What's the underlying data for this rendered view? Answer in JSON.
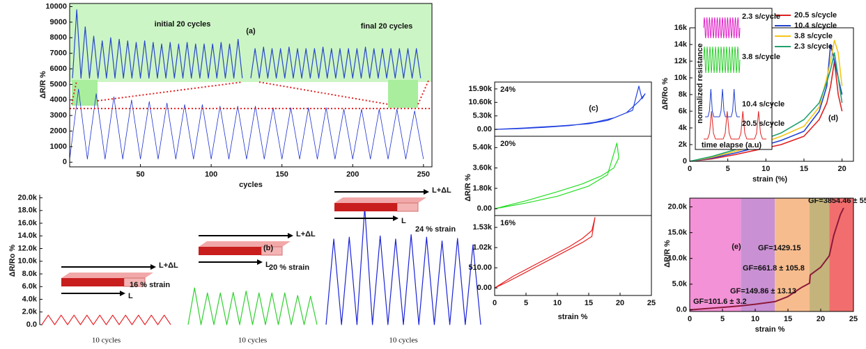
{
  "chart_data": [
    {
      "type": "line",
      "title": "(a)",
      "ylabel": "ΔR/R %",
      "xlabel": "cycles",
      "xlim": [
        0,
        256
      ],
      "xticks": [
        50,
        100,
        150,
        200,
        250
      ],
      "ylim": [
        -300,
        10200
      ],
      "yticks": [
        0,
        1000,
        2000,
        3000,
        4000,
        5000,
        6000,
        7000,
        8000,
        9000,
        10000
      ],
      "hline": 3450,
      "hline_color": "#e02020",
      "series": [
        {
          "color": "#1c2fd0",
          "x": [
            0,
            6.25,
            12.5,
            18.75,
            25,
            31.25,
            37.5,
            43.75,
            50,
            56.25,
            62.5,
            68.75,
            75,
            81.25,
            87.5,
            93.75,
            100,
            106.25,
            112.5,
            118.75,
            125,
            131.25,
            137.5,
            143.75,
            150,
            156.25,
            162.5,
            168.75,
            175,
            181.25,
            187.5,
            193.75,
            200,
            206.25,
            212.5,
            218.75,
            225,
            231.25,
            237.5,
            243.75,
            250
          ],
          "values": [
            200,
            4700,
            200,
            4400,
            200,
            4200,
            200,
            4000,
            200,
            3900,
            200,
            3800,
            200,
            3700,
            200,
            3700,
            200,
            3600,
            200,
            3600,
            200,
            3600,
            200,
            3500,
            200,
            3500,
            200,
            3500,
            200,
            3500,
            200,
            3400,
            200,
            3400,
            200,
            3400,
            200,
            3400,
            200,
            3300,
            200
          ]
        },
        {
          "name": "initial 20 cycles",
          "color": "#2646c8",
          "x": [
            2,
            5,
            8,
            11,
            14,
            17,
            20,
            23,
            26,
            29,
            32,
            35,
            38,
            41,
            44,
            47,
            50,
            53,
            56,
            59,
            62,
            65,
            68,
            71,
            74,
            77,
            80,
            83,
            86,
            89,
            92,
            95,
            98,
            101,
            104,
            107,
            110,
            113,
            116,
            119,
            122
          ],
          "values": [
            5400,
            9800,
            5400,
            8700,
            5400,
            8100,
            5400,
            7800,
            5400,
            8000,
            5400,
            7900,
            5400,
            7800,
            5400,
            7700,
            5400,
            7800,
            5400,
            7700,
            5400,
            7600,
            5400,
            7700,
            5400,
            7600,
            5400,
            7700,
            5400,
            7600,
            5400,
            7600,
            5400,
            7600,
            5400,
            7700,
            5400,
            7600,
            5400,
            7900,
            5400
          ]
        },
        {
          "name": "final 20 cycles",
          "color": "#2646c8",
          "x": [
            128,
            131,
            134,
            137,
            140,
            143,
            146,
            149,
            152,
            155,
            158,
            161,
            164,
            167,
            170,
            173,
            176,
            179,
            182,
            185,
            188,
            191,
            194,
            197,
            200,
            203,
            206,
            209,
            212,
            215,
            218,
            221,
            224,
            227,
            230,
            233,
            236,
            239,
            242,
            245,
            248
          ],
          "values": [
            5400,
            7300,
            5400,
            7400,
            5400,
            7300,
            5400,
            7300,
            5400,
            7400,
            5400,
            7300,
            5400,
            7300,
            5400,
            7300,
            5400,
            7400,
            5400,
            7300,
            5400,
            7300,
            5400,
            7300,
            5400,
            7300,
            5400,
            7400,
            5400,
            7300,
            5400,
            7300,
            5400,
            7300,
            5400,
            7300,
            5400,
            7300,
            5400,
            7300,
            5400
          ]
        }
      ]
    },
    {
      "type": "line",
      "title": "(b)",
      "ylabel": "ΔR/Ro %",
      "ylim": [
        0,
        20500
      ],
      "yticks": [
        {
          "value": 0,
          "label": "0.0"
        },
        {
          "value": 2000,
          "label": "2.0k"
        },
        {
          "value": 4000,
          "label": "4.0k"
        },
        {
          "value": 6000,
          "label": "6.0k"
        },
        {
          "value": 8000,
          "label": "8.0k"
        },
        {
          "value": 10000,
          "label": "10.0k"
        },
        {
          "value": 12000,
          "label": "12.0k"
        },
        {
          "value": 14000,
          "label": "14.0k"
        },
        {
          "value": 16000,
          "label": "16.0k"
        },
        {
          "value": 18000,
          "label": "18.0k"
        },
        {
          "value": 20000,
          "label": "20.0k"
        }
      ],
      "series": [
        {
          "name": "16 % strain",
          "xlabel": "10 cycles",
          "labels": [
            "L+ΔL",
            "L"
          ],
          "color": "#e8262b",
          "values": [
            0,
            1500,
            0,
            1500,
            0,
            1500,
            0,
            1500,
            0,
            1500,
            0,
            1500,
            0,
            1500,
            0,
            1500,
            0,
            1500,
            0,
            1500,
            0
          ]
        },
        {
          "name": "20 % strain",
          "xlabel": "10 cycles",
          "labels": [
            "L+ΔL",
            "L"
          ],
          "color": "#2fd12f",
          "values": [
            0,
            5800,
            0,
            5000,
            0,
            5000,
            0,
            5100,
            0,
            5300,
            0,
            5000,
            0,
            5000,
            0,
            5000,
            0,
            4600,
            0,
            4500,
            0
          ]
        },
        {
          "name": "24 % strain",
          "xlabel": "10 cycles",
          "labels": [
            "L+ΔL",
            "L"
          ],
          "color": "#1a22d6",
          "values": [
            0,
            13500,
            0,
            13800,
            0,
            18500,
            0,
            14000,
            0,
            13500,
            0,
            14200,
            0,
            13800,
            0,
            13200,
            0,
            13600,
            0,
            12600,
            0
          ]
        }
      ]
    },
    {
      "type": "line",
      "title": "(c)",
      "ylabel": "ΔR/R %",
      "xlabel": "strain %",
      "xlim": [
        0,
        25
      ],
      "xticks": [
        0,
        5,
        10,
        15,
        20,
        25
      ],
      "panels": [
        {
          "label": "24%",
          "ylim": [
            -2700,
            18600
          ],
          "color": "#1f3fe0",
          "yticks": [
            {
              "value": 0,
              "label": "0.00"
            },
            {
              "value": 5300,
              "label": "5.30k"
            },
            {
              "value": 10600,
              "label": "10.60k"
            },
            {
              "value": 15900,
              "label": "15.90k"
            }
          ],
          "x": [
            0,
            5,
            10,
            15,
            18,
            20,
            22,
            23,
            23.5,
            24,
            23,
            21,
            19,
            16,
            12,
            8,
            4,
            0
          ],
          "values": [
            0,
            600,
            1300,
            2200,
            3500,
            5500,
            7500,
            17000,
            12000,
            14000,
            11000,
            6500,
            4500,
            2800,
            1500,
            800,
            300,
            0
          ]
        },
        {
          "label": "20%",
          "ylim": [
            -600,
            6400
          ],
          "color": "#22dd22",
          "yticks": [
            {
              "value": 0,
              "label": "0.00"
            },
            {
              "value": 1800,
              "label": "1.80k"
            },
            {
              "value": 3600,
              "label": "3.60k"
            },
            {
              "value": 5400,
              "label": "5.40k"
            }
          ],
          "x": [
            0,
            5,
            10,
            15,
            18,
            19.5,
            19.8,
            19,
            17,
            14,
            10,
            5,
            0
          ],
          "values": [
            0,
            500,
            1100,
            2000,
            3000,
            5800,
            4500,
            3600,
            2900,
            2200,
            1500,
            700,
            0
          ]
        },
        {
          "label": "16%",
          "ylim": [
            -190,
            1830
          ],
          "color": "#e82020",
          "yticks": [
            {
              "value": 0,
              "label": "0.00"
            },
            {
              "value": 510,
              "label": "510.00"
            },
            {
              "value": 1020,
              "label": "1.02k"
            },
            {
              "value": 1530,
              "label": "1.53k"
            }
          ],
          "x": [
            0,
            3,
            6,
            9,
            12,
            14,
            15.5,
            16,
            15.5,
            14,
            11,
            8,
            5,
            2,
            0
          ],
          "values": [
            0,
            300,
            550,
            800,
            1050,
            1250,
            1450,
            1780,
            1300,
            1150,
            900,
            650,
            400,
            150,
            0
          ]
        }
      ]
    },
    {
      "type": "line",
      "title": "(d)",
      "ylabel": "ΔR/Ro %",
      "xlabel": "strain (%)",
      "xlim": [
        0,
        21.5
      ],
      "xticks": [
        0,
        5,
        10,
        15,
        20
      ],
      "ylim": [
        0,
        16000
      ],
      "yticks": [
        0,
        {
          "value": 2000,
          "label": "2k"
        },
        {
          "value": 4000,
          "label": "4k"
        },
        {
          "value": 6000,
          "label": "6k"
        },
        {
          "value": 8000,
          "label": "8k"
        },
        {
          "value": 10000,
          "label": "10k"
        },
        {
          "value": 12000,
          "label": "12k"
        },
        {
          "value": 14000,
          "label": "14k"
        },
        {
          "value": 16000,
          "label": "16k"
        }
      ],
      "inset_labels": [
        "2.3 s/cycle",
        "3.8 s/cycle",
        "10.4 s/cycle",
        "20.5 s/cycle"
      ],
      "inset_ylabel": "normalized resistance",
      "inset_xlabel": "time elapse (a.u)",
      "series": [
        {
          "name": "20.5 s/cycle",
          "color": "#e02020",
          "x": [
            0,
            3,
            6,
            9,
            12,
            15,
            17,
            18,
            18.5,
            19,
            19.5,
            20
          ],
          "values": [
            0,
            300,
            800,
            1400,
            2000,
            3000,
            5000,
            7000,
            9000,
            12000,
            8000,
            6000
          ]
        },
        {
          "name": "10.4 s/cycle",
          "color": "#2040d0",
          "x": [
            0,
            3,
            6,
            9,
            12,
            15,
            17,
            18,
            18.5,
            19,
            19.5,
            20
          ],
          "values": [
            0,
            400,
            1000,
            1700,
            2500,
            3600,
            6000,
            9000,
            14000,
            12000,
            10000,
            8000
          ]
        },
        {
          "name": "3.8 s/cycle",
          "color": "#f5c518",
          "x": [
            0,
            3,
            6,
            9,
            12,
            15,
            17,
            18,
            18.5,
            19,
            19.5,
            20
          ],
          "values": [
            0,
            500,
            1200,
            2000,
            3000,
            4200,
            6500,
            10000,
            12000,
            14500,
            13000,
            9000
          ]
        },
        {
          "name": "2.3 s/cycle",
          "color": "#20a070",
          "x": [
            0,
            3,
            6,
            9,
            12,
            15,
            17,
            18,
            18.5,
            19,
            19.5,
            20
          ],
          "values": [
            0,
            600,
            1400,
            2400,
            3400,
            5000,
            7000,
            9500,
            11000,
            13000,
            10000,
            7000
          ]
        }
      ]
    },
    {
      "type": "line",
      "title": "(e)",
      "ylabel": "ΔR/R %",
      "xlabel": "strain %",
      "xlim": [
        0,
        25
      ],
      "xticks": [
        0,
        5,
        10,
        15,
        20,
        25
      ],
      "ylim": [
        -300,
        21700
      ],
      "yticks": [
        {
          "value": 0,
          "label": "0.0"
        },
        {
          "value": 5000,
          "label": "5.0k"
        },
        {
          "value": 10000,
          "label": "10.0k"
        },
        {
          "value": 15000,
          "label": "15.0k"
        },
        {
          "value": 20000,
          "label": "20.0k"
        }
      ],
      "regions": [
        {
          "xlim": [
            0,
            7.8
          ],
          "color": "#f392d6"
        },
        {
          "xlim": [
            7.8,
            13
          ],
          "color": "#c991d4"
        },
        {
          "xlim": [
            13,
            18.3
          ],
          "color": "#f7bc8e"
        },
        {
          "xlim": [
            18.3,
            21.3
          ],
          "color": "#c4b47c"
        },
        {
          "xlim": [
            21.3,
            25
          ],
          "color": "#f26e6e"
        }
      ],
      "annotations": [
        "GF=101.6 ± 3.2",
        "GF=149.86 ± 13.13",
        "GF=661.8 ± 105.8",
        "GF=1429.15",
        "GF=3854.46 ± 55"
      ],
      "series": [
        {
          "color": "#8b1a3a",
          "x": [
            0,
            2,
            4,
            6,
            7.8,
            10,
            13,
            15,
            17,
            18.3,
            18.4,
            20,
            21.3,
            22,
            23,
            23.5
          ],
          "values": [
            0,
            200,
            400,
            600,
            800,
            1100,
            1600,
            2600,
            4300,
            5200,
            6800,
            8300,
            10500,
            14500,
            18500,
            19800
          ]
        }
      ]
    }
  ]
}
